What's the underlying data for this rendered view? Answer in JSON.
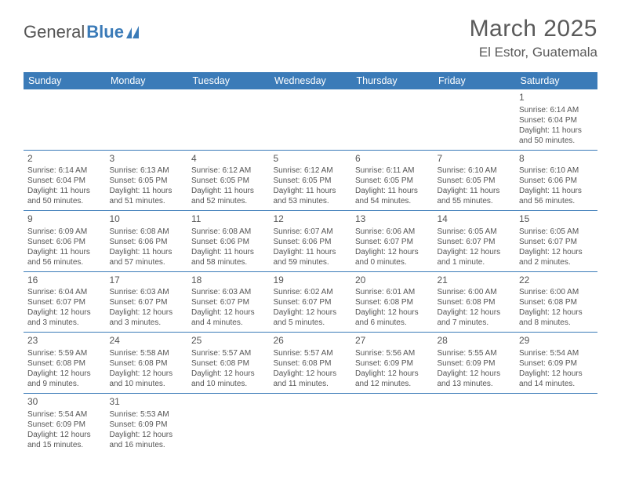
{
  "logo": {
    "word1": "General",
    "word2": "Blue"
  },
  "title": "March 2025",
  "location": "El Estor, Guatemala",
  "styling": {
    "header_bg": "#3b7bb8",
    "header_fg": "#ffffff",
    "border_color": "#3b7bb8",
    "body_bg": "#ffffff",
    "text_color": "#555555",
    "title_fontsize": 30,
    "location_fontsize": 17,
    "dayhead_fontsize": 12.5,
    "cell_fontsize": 10
  },
  "dayHeaders": [
    "Sunday",
    "Monday",
    "Tuesday",
    "Wednesday",
    "Thursday",
    "Friday",
    "Saturday"
  ],
  "weeks": [
    [
      null,
      null,
      null,
      null,
      null,
      null,
      {
        "n": "1",
        "sunrise": "Sunrise: 6:14 AM",
        "sunset": "Sunset: 6:04 PM",
        "daylight": "Daylight: 11 hours and 50 minutes."
      }
    ],
    [
      {
        "n": "2",
        "sunrise": "Sunrise: 6:14 AM",
        "sunset": "Sunset: 6:04 PM",
        "daylight": "Daylight: 11 hours and 50 minutes."
      },
      {
        "n": "3",
        "sunrise": "Sunrise: 6:13 AM",
        "sunset": "Sunset: 6:05 PM",
        "daylight": "Daylight: 11 hours and 51 minutes."
      },
      {
        "n": "4",
        "sunrise": "Sunrise: 6:12 AM",
        "sunset": "Sunset: 6:05 PM",
        "daylight": "Daylight: 11 hours and 52 minutes."
      },
      {
        "n": "5",
        "sunrise": "Sunrise: 6:12 AM",
        "sunset": "Sunset: 6:05 PM",
        "daylight": "Daylight: 11 hours and 53 minutes."
      },
      {
        "n": "6",
        "sunrise": "Sunrise: 6:11 AM",
        "sunset": "Sunset: 6:05 PM",
        "daylight": "Daylight: 11 hours and 54 minutes."
      },
      {
        "n": "7",
        "sunrise": "Sunrise: 6:10 AM",
        "sunset": "Sunset: 6:05 PM",
        "daylight": "Daylight: 11 hours and 55 minutes."
      },
      {
        "n": "8",
        "sunrise": "Sunrise: 6:10 AM",
        "sunset": "Sunset: 6:06 PM",
        "daylight": "Daylight: 11 hours and 56 minutes."
      }
    ],
    [
      {
        "n": "9",
        "sunrise": "Sunrise: 6:09 AM",
        "sunset": "Sunset: 6:06 PM",
        "daylight": "Daylight: 11 hours and 56 minutes."
      },
      {
        "n": "10",
        "sunrise": "Sunrise: 6:08 AM",
        "sunset": "Sunset: 6:06 PM",
        "daylight": "Daylight: 11 hours and 57 minutes."
      },
      {
        "n": "11",
        "sunrise": "Sunrise: 6:08 AM",
        "sunset": "Sunset: 6:06 PM",
        "daylight": "Daylight: 11 hours and 58 minutes."
      },
      {
        "n": "12",
        "sunrise": "Sunrise: 6:07 AM",
        "sunset": "Sunset: 6:06 PM",
        "daylight": "Daylight: 11 hours and 59 minutes."
      },
      {
        "n": "13",
        "sunrise": "Sunrise: 6:06 AM",
        "sunset": "Sunset: 6:07 PM",
        "daylight": "Daylight: 12 hours and 0 minutes."
      },
      {
        "n": "14",
        "sunrise": "Sunrise: 6:05 AM",
        "sunset": "Sunset: 6:07 PM",
        "daylight": "Daylight: 12 hours and 1 minute."
      },
      {
        "n": "15",
        "sunrise": "Sunrise: 6:05 AM",
        "sunset": "Sunset: 6:07 PM",
        "daylight": "Daylight: 12 hours and 2 minutes."
      }
    ],
    [
      {
        "n": "16",
        "sunrise": "Sunrise: 6:04 AM",
        "sunset": "Sunset: 6:07 PM",
        "daylight": "Daylight: 12 hours and 3 minutes."
      },
      {
        "n": "17",
        "sunrise": "Sunrise: 6:03 AM",
        "sunset": "Sunset: 6:07 PM",
        "daylight": "Daylight: 12 hours and 3 minutes."
      },
      {
        "n": "18",
        "sunrise": "Sunrise: 6:03 AM",
        "sunset": "Sunset: 6:07 PM",
        "daylight": "Daylight: 12 hours and 4 minutes."
      },
      {
        "n": "19",
        "sunrise": "Sunrise: 6:02 AM",
        "sunset": "Sunset: 6:07 PM",
        "daylight": "Daylight: 12 hours and 5 minutes."
      },
      {
        "n": "20",
        "sunrise": "Sunrise: 6:01 AM",
        "sunset": "Sunset: 6:08 PM",
        "daylight": "Daylight: 12 hours and 6 minutes."
      },
      {
        "n": "21",
        "sunrise": "Sunrise: 6:00 AM",
        "sunset": "Sunset: 6:08 PM",
        "daylight": "Daylight: 12 hours and 7 minutes."
      },
      {
        "n": "22",
        "sunrise": "Sunrise: 6:00 AM",
        "sunset": "Sunset: 6:08 PM",
        "daylight": "Daylight: 12 hours and 8 minutes."
      }
    ],
    [
      {
        "n": "23",
        "sunrise": "Sunrise: 5:59 AM",
        "sunset": "Sunset: 6:08 PM",
        "daylight": "Daylight: 12 hours and 9 minutes."
      },
      {
        "n": "24",
        "sunrise": "Sunrise: 5:58 AM",
        "sunset": "Sunset: 6:08 PM",
        "daylight": "Daylight: 12 hours and 10 minutes."
      },
      {
        "n": "25",
        "sunrise": "Sunrise: 5:57 AM",
        "sunset": "Sunset: 6:08 PM",
        "daylight": "Daylight: 12 hours and 10 minutes."
      },
      {
        "n": "26",
        "sunrise": "Sunrise: 5:57 AM",
        "sunset": "Sunset: 6:08 PM",
        "daylight": "Daylight: 12 hours and 11 minutes."
      },
      {
        "n": "27",
        "sunrise": "Sunrise: 5:56 AM",
        "sunset": "Sunset: 6:09 PM",
        "daylight": "Daylight: 12 hours and 12 minutes."
      },
      {
        "n": "28",
        "sunrise": "Sunrise: 5:55 AM",
        "sunset": "Sunset: 6:09 PM",
        "daylight": "Daylight: 12 hours and 13 minutes."
      },
      {
        "n": "29",
        "sunrise": "Sunrise: 5:54 AM",
        "sunset": "Sunset: 6:09 PM",
        "daylight": "Daylight: 12 hours and 14 minutes."
      }
    ],
    [
      {
        "n": "30",
        "sunrise": "Sunrise: 5:54 AM",
        "sunset": "Sunset: 6:09 PM",
        "daylight": "Daylight: 12 hours and 15 minutes."
      },
      {
        "n": "31",
        "sunrise": "Sunrise: 5:53 AM",
        "sunset": "Sunset: 6:09 PM",
        "daylight": "Daylight: 12 hours and 16 minutes."
      },
      null,
      null,
      null,
      null,
      null
    ]
  ]
}
